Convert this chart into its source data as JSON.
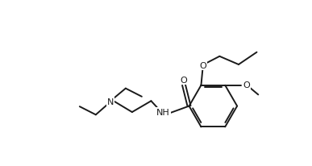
{
  "bg_color": "#ffffff",
  "line_color": "#1a1a1a",
  "line_width": 1.4,
  "figure_size": [
    3.87,
    2.07
  ],
  "dpi": 100,
  "xlim": [
    0,
    10.5
  ],
  "ylim": [
    0,
    5.5
  ]
}
